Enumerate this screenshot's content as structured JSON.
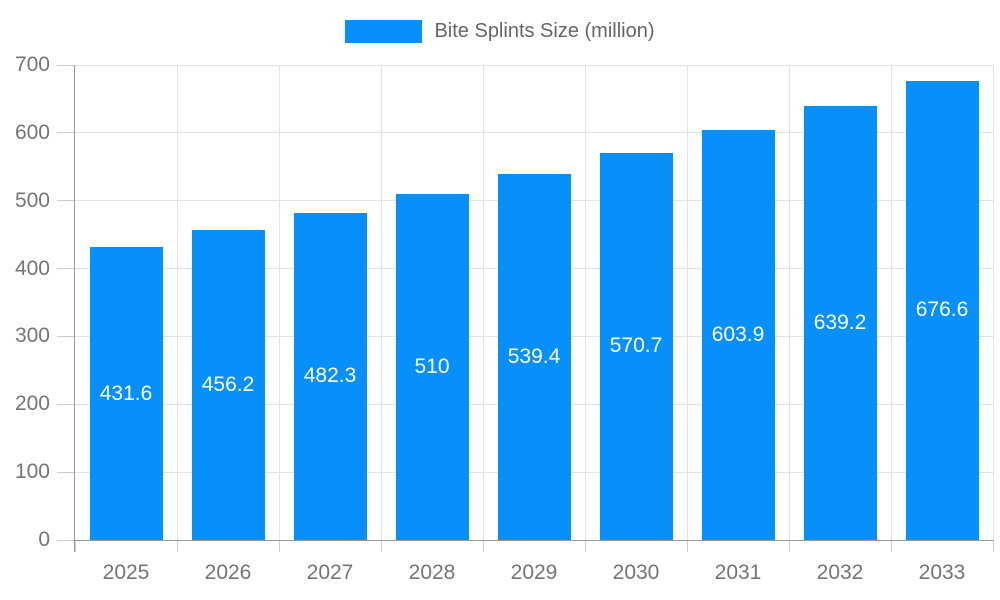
{
  "chart_data": {
    "type": "bar",
    "title": "Bite Splints Size (million)",
    "categories": [
      "2025",
      "2026",
      "2027",
      "2028",
      "2029",
      "2030",
      "2031",
      "2032",
      "2033"
    ],
    "series": [
      {
        "name": "Bite Splints Size (million)",
        "values": [
          431.6,
          456.2,
          482.3,
          510,
          539.4,
          570.7,
          603.9,
          639.2,
          676.6
        ]
      }
    ],
    "xlabel": "",
    "ylabel": "",
    "ylim": [
      0,
      700
    ],
    "yticks": [
      0,
      100,
      200,
      300,
      400,
      500,
      600,
      700
    ],
    "grid": true,
    "legend_position": "top",
    "value_label_position": "inside-center",
    "colors": {
      "bar": "#0890fa",
      "value_label": "#ffffff",
      "grid": "#e3e3e3",
      "tick": "#cccccc",
      "axis": "#999999",
      "tick_label": "#757575",
      "legend_text": "#666666",
      "background": "#ffffff"
    }
  }
}
